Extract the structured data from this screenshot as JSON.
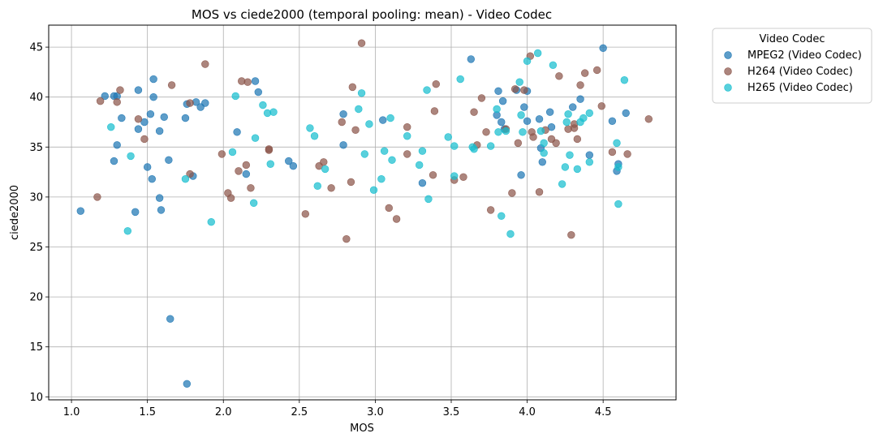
{
  "chart_data": {
    "type": "scatter",
    "title": "MOS vs ciede2000 (temporal pooling: mean) - Video Codec",
    "xlabel": "MOS",
    "ylabel": "ciede2000",
    "xlim": [
      0.85,
      4.98
    ],
    "ylim": [
      9.7,
      47.2
    ],
    "xticks": [
      "1.0",
      "1.5",
      "2.0",
      "2.5",
      "3.0",
      "3.5",
      "4.0",
      "4.5"
    ],
    "xtick_values": [
      1.0,
      1.5,
      2.0,
      2.5,
      3.0,
      3.5,
      4.0,
      4.5
    ],
    "yticks": [
      "10",
      "15",
      "20",
      "25",
      "30",
      "35",
      "40",
      "45"
    ],
    "ytick_values": [
      10,
      15,
      20,
      25,
      30,
      35,
      40,
      45
    ],
    "grid": true,
    "legend": {
      "title": "Video Codec",
      "placement": "outside-top-right"
    },
    "series": [
      {
        "name": "MPEG2 (Video Codec)",
        "color": "#1f77b4",
        "points": [
          [
            1.06,
            28.6
          ],
          [
            1.22,
            40.1
          ],
          [
            1.28,
            40.1
          ],
          [
            1.3,
            40.1
          ],
          [
            1.3,
            35.2
          ],
          [
            1.28,
            33.6
          ],
          [
            1.33,
            37.9
          ],
          [
            1.44,
            36.8
          ],
          [
            1.44,
            40.7
          ],
          [
            1.48,
            37.5
          ],
          [
            1.42,
            28.5
          ],
          [
            1.5,
            33.0
          ],
          [
            1.52,
            38.3
          ],
          [
            1.54,
            41.8
          ],
          [
            1.54,
            40.0
          ],
          [
            1.53,
            31.8
          ],
          [
            1.58,
            36.6
          ],
          [
            1.58,
            29.9
          ],
          [
            1.59,
            28.7
          ],
          [
            1.61,
            38.0
          ],
          [
            1.64,
            33.7
          ],
          [
            1.65,
            17.8
          ],
          [
            1.75,
            37.9
          ],
          [
            1.76,
            39.3
          ],
          [
            1.76,
            11.3
          ],
          [
            1.8,
            32.1
          ],
          [
            1.82,
            39.5
          ],
          [
            1.85,
            39.0
          ],
          [
            1.88,
            39.4
          ],
          [
            2.09,
            36.5
          ],
          [
            2.15,
            32.3
          ],
          [
            2.21,
            41.6
          ],
          [
            2.23,
            40.5
          ],
          [
            2.43,
            33.6
          ],
          [
            2.46,
            33.1
          ],
          [
            2.79,
            38.3
          ],
          [
            2.79,
            35.2
          ],
          [
            3.05,
            37.7
          ],
          [
            3.31,
            31.4
          ],
          [
            3.63,
            43.8
          ],
          [
            3.8,
            38.2
          ],
          [
            3.81,
            40.6
          ],
          [
            3.83,
            37.5
          ],
          [
            3.84,
            39.6
          ],
          [
            3.85,
            36.8
          ],
          [
            3.93,
            40.7
          ],
          [
            3.96,
            32.2
          ],
          [
            3.98,
            39.0
          ],
          [
            4.0,
            40.6
          ],
          [
            4.0,
            37.6
          ],
          [
            4.08,
            37.8
          ],
          [
            4.1,
            33.5
          ],
          [
            4.09,
            34.9
          ],
          [
            4.15,
            38.5
          ],
          [
            4.16,
            37.0
          ],
          [
            4.3,
            39.0
          ],
          [
            4.35,
            39.8
          ],
          [
            4.41,
            34.2
          ],
          [
            4.5,
            44.9
          ],
          [
            4.56,
            37.6
          ],
          [
            4.59,
            32.6
          ],
          [
            4.6,
            33.3
          ],
          [
            4.65,
            38.4
          ]
        ]
      },
      {
        "name": "H264 (Video Codec)",
        "color": "#8c564b",
        "points": [
          [
            1.17,
            30.0
          ],
          [
            1.19,
            39.6
          ],
          [
            1.3,
            39.5
          ],
          [
            1.32,
            40.7
          ],
          [
            1.44,
            37.8
          ],
          [
            1.48,
            35.8
          ],
          [
            1.66,
            41.2
          ],
          [
            1.78,
            32.3
          ],
          [
            1.78,
            39.4
          ],
          [
            1.88,
            43.3
          ],
          [
            1.99,
            34.3
          ],
          [
            2.03,
            30.4
          ],
          [
            2.05,
            29.9
          ],
          [
            2.1,
            32.6
          ],
          [
            2.12,
            41.6
          ],
          [
            2.15,
            33.2
          ],
          [
            2.16,
            41.5
          ],
          [
            2.18,
            30.9
          ],
          [
            2.3,
            34.7
          ],
          [
            2.3,
            34.8
          ],
          [
            2.54,
            28.3
          ],
          [
            2.63,
            33.1
          ],
          [
            2.66,
            33.5
          ],
          [
            2.71,
            30.9
          ],
          [
            2.78,
            37.5
          ],
          [
            2.81,
            25.8
          ],
          [
            2.85,
            41.0
          ],
          [
            2.84,
            31.5
          ],
          [
            2.87,
            36.7
          ],
          [
            2.91,
            45.4
          ],
          [
            3.09,
            28.9
          ],
          [
            3.14,
            27.8
          ],
          [
            3.21,
            37.0
          ],
          [
            3.21,
            34.3
          ],
          [
            3.38,
            32.2
          ],
          [
            3.39,
            38.6
          ],
          [
            3.4,
            41.3
          ],
          [
            3.52,
            31.7
          ],
          [
            3.58,
            32.0
          ],
          [
            3.65,
            38.5
          ],
          [
            3.67,
            35.2
          ],
          [
            3.7,
            39.9
          ],
          [
            3.73,
            36.5
          ],
          [
            3.76,
            28.7
          ],
          [
            3.86,
            36.8
          ],
          [
            3.9,
            30.4
          ],
          [
            3.92,
            40.8
          ],
          [
            3.94,
            35.4
          ],
          [
            3.98,
            40.7
          ],
          [
            4.02,
            44.1
          ],
          [
            4.03,
            36.5
          ],
          [
            4.04,
            36.0
          ],
          [
            4.08,
            30.5
          ],
          [
            4.12,
            36.7
          ],
          [
            4.16,
            35.8
          ],
          [
            4.19,
            35.4
          ],
          [
            4.21,
            42.1
          ],
          [
            4.27,
            36.8
          ],
          [
            4.29,
            26.2
          ],
          [
            4.31,
            36.9
          ],
          [
            4.31,
            37.3
          ],
          [
            4.33,
            35.8
          ],
          [
            4.35,
            41.2
          ],
          [
            4.38,
            42.4
          ],
          [
            4.46,
            42.7
          ],
          [
            4.49,
            39.1
          ],
          [
            4.56,
            34.5
          ],
          [
            4.66,
            34.3
          ],
          [
            4.8,
            37.8
          ]
        ]
      },
      {
        "name": "H265 (Video Codec)",
        "color": "#17becf",
        "points": [
          [
            1.26,
            37.0
          ],
          [
            1.37,
            26.6
          ],
          [
            1.39,
            34.1
          ],
          [
            1.75,
            31.8
          ],
          [
            1.92,
            27.5
          ],
          [
            2.06,
            34.5
          ],
          [
            2.08,
            40.1
          ],
          [
            2.2,
            29.4
          ],
          [
            2.21,
            35.9
          ],
          [
            2.26,
            39.2
          ],
          [
            2.29,
            38.4
          ],
          [
            2.31,
            33.3
          ],
          [
            2.33,
            38.5
          ],
          [
            2.57,
            36.9
          ],
          [
            2.6,
            36.1
          ],
          [
            2.62,
            31.1
          ],
          [
            2.67,
            32.8
          ],
          [
            2.89,
            38.8
          ],
          [
            2.91,
            40.4
          ],
          [
            2.93,
            34.3
          ],
          [
            2.96,
            37.3
          ],
          [
            2.99,
            30.7
          ],
          [
            3.04,
            31.8
          ],
          [
            3.06,
            34.6
          ],
          [
            3.1,
            37.9
          ],
          [
            3.11,
            33.7
          ],
          [
            3.21,
            36.1
          ],
          [
            3.29,
            33.2
          ],
          [
            3.31,
            34.6
          ],
          [
            3.34,
            40.7
          ],
          [
            3.35,
            29.8
          ],
          [
            3.48,
            36.0
          ],
          [
            3.52,
            35.1
          ],
          [
            3.52,
            32.1
          ],
          [
            3.56,
            41.8
          ],
          [
            3.64,
            35.0
          ],
          [
            3.65,
            34.8
          ],
          [
            3.76,
            35.1
          ],
          [
            3.8,
            38.8
          ],
          [
            3.81,
            36.5
          ],
          [
            3.83,
            28.1
          ],
          [
            3.86,
            36.6
          ],
          [
            3.89,
            26.3
          ],
          [
            3.95,
            41.5
          ],
          [
            3.96,
            38.2
          ],
          [
            3.97,
            36.5
          ],
          [
            4.0,
            43.6
          ],
          [
            4.07,
            44.4
          ],
          [
            4.09,
            36.6
          ],
          [
            4.11,
            34.4
          ],
          [
            4.11,
            35.4
          ],
          [
            4.17,
            43.2
          ],
          [
            4.23,
            31.3
          ],
          [
            4.25,
            33.0
          ],
          [
            4.26,
            37.5
          ],
          [
            4.27,
            38.3
          ],
          [
            4.28,
            34.2
          ],
          [
            4.33,
            32.8
          ],
          [
            4.35,
            37.5
          ],
          [
            4.37,
            37.9
          ],
          [
            4.41,
            38.4
          ],
          [
            4.41,
            33.5
          ],
          [
            4.59,
            35.4
          ],
          [
            4.6,
            29.3
          ],
          [
            4.6,
            33.0
          ],
          [
            4.64,
            41.7
          ]
        ]
      }
    ]
  }
}
